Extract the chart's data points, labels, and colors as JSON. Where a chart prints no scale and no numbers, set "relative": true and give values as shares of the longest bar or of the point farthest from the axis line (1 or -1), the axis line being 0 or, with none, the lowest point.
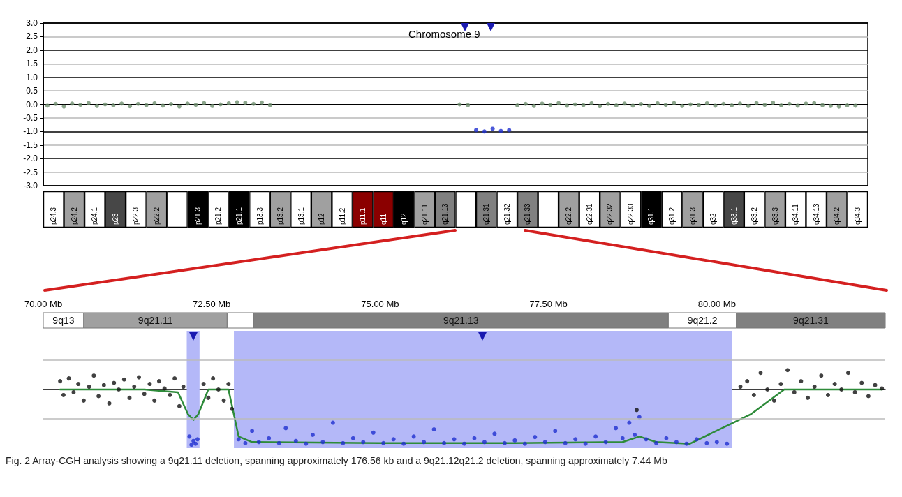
{
  "chart_data": [
    {
      "type": "scatter",
      "title": "Chromosome 9",
      "categories": [
        null,
        null,
        null,
        null,
        null,
        null,
        null,
        null,
        null,
        null,
        null,
        null,
        null,
        null,
        null,
        null,
        null,
        null,
        null,
        null,
        null,
        null,
        null,
        null,
        null,
        null,
        null,
        null,
        null,
        null,
        null,
        null,
        null,
        null,
        null,
        null,
        null,
        null,
        null,
        null,
        null,
        null,
        null,
        null,
        null,
        null,
        null,
        null,
        null,
        null,
        null,
        null,
        null,
        null,
        null,
        null,
        null,
        null,
        null,
        null,
        null,
        null,
        null,
        null,
        null,
        null,
        null,
        null,
        null,
        null,
        null,
        null,
        null,
        null,
        null,
        null,
        null,
        null,
        null,
        null,
        null,
        null,
        null,
        null,
        null,
        null,
        null,
        null,
        null,
        null,
        null,
        null,
        null,
        null,
        null,
        null,
        null,
        null,
        null,
        null
      ],
      "series": [
        {
          "color": "#6f8f6f",
          "values": [
            -0.05,
            0.02,
            -0.08,
            0.03,
            -0.02,
            0.05,
            -0.06,
            0,
            -0.04,
            0.03,
            -0.07,
            0.02,
            -0.03,
            0.04,
            -0.05,
            0.01,
            -0.08,
            0.03,
            -0.02,
            0.05,
            -0.06,
            0,
            0.04,
            0.08,
            0.06,
            0.02,
            0.07,
            -0.03,
            null,
            null,
            null,
            null,
            null,
            null,
            null,
            null,
            null,
            null,
            null,
            null,
            null,
            null,
            null,
            null,
            null,
            null,
            null,
            null,
            null,
            null,
            0,
            -0.03,
            null,
            null,
            null,
            null,
            null,
            -0.04,
            0.02,
            -0.06,
            0.03,
            -0.02,
            0.05,
            -0.05,
            0,
            -0.03,
            0.04,
            -0.07,
            0.02,
            -0.04,
            0.03,
            -0.05,
            0.01,
            -0.06,
            0.04,
            -0.02,
            0.05,
            -0.06,
            0,
            -0.03,
            0.04,
            -0.05,
            0.02,
            -0.04,
            0.03,
            -0.06,
            0.05,
            -0.02,
            0.06,
            -0.04,
            0.02,
            -0.05,
            0.03,
            0.05,
            -0.03,
            -0.06,
            -0.08,
            -0.04,
            -0.05,
            null
          ]
        },
        {
          "color": "#1f2fd0",
          "values": [
            null,
            null,
            null,
            null,
            null,
            null,
            null,
            null,
            null,
            null,
            null,
            null,
            null,
            null,
            null,
            null,
            null,
            null,
            null,
            null,
            null,
            null,
            null,
            null,
            null,
            null,
            null,
            null,
            null,
            null,
            null,
            null,
            null,
            null,
            null,
            null,
            null,
            null,
            null,
            null,
            null,
            null,
            null,
            null,
            null,
            null,
            null,
            null,
            null,
            null,
            null,
            null,
            -0.95,
            -1.0,
            -0.9,
            -0.98,
            -0.95,
            null,
            null,
            null,
            null,
            null,
            null,
            null,
            null,
            null,
            null,
            null,
            null,
            null,
            null,
            null,
            null,
            null,
            null,
            null,
            null,
            null,
            null,
            null,
            null,
            null,
            null,
            null,
            null,
            null,
            null,
            null,
            null,
            null,
            null,
            null,
            null,
            null,
            null,
            null,
            null,
            null,
            null,
            null
          ]
        }
      ],
      "ylim": [
        -3,
        3
      ],
      "yticks": [
        {
          "value": -3,
          "label": "-3.0"
        },
        {
          "value": -2.5,
          "label": "-2.5"
        },
        {
          "value": -2,
          "label": "-2.0"
        },
        {
          "value": -1.5,
          "label": "-1.5"
        },
        {
          "value": -1,
          "label": "-1.0"
        },
        {
          "value": -0.5,
          "label": "-0.5"
        },
        {
          "value": 0,
          "label": "0.0"
        },
        {
          "value": 0.5,
          "label": "0.5"
        },
        {
          "value": 1,
          "label": "1.0"
        },
        {
          "value": 1.5,
          "label": "1.5"
        },
        {
          "value": 2,
          "label": "2.0"
        },
        {
          "value": 2.5,
          "label": "2.5"
        },
        {
          "value": 3,
          "label": "3.0"
        }
      ],
      "grid": "y",
      "tick_labels": "y",
      "marker": "circle",
      "legend": false
    },
    {
      "type": "bar",
      "relative": true,
      "tick_labels": "x",
      "legend": false,
      "categories": [
        "p24.3",
        "p24.2",
        "p24.1",
        "p23",
        "p22.3",
        "p22.2",
        null,
        "p21.3",
        "p21.2",
        "p21.1",
        "p13.3",
        "p13.2",
        "p13.1",
        "p12",
        "p11.2",
        "p11.1",
        "q11",
        "q12",
        "q21.11",
        "q21.13",
        null,
        "q21.31",
        "q21.32",
        "q21.33",
        null,
        "q22.2",
        "q22.31",
        "q22.32",
        "q22.33",
        "q31.1",
        "q31.2",
        "q31.3",
        "q32",
        "q33.1",
        "q33.2",
        "q33.3",
        "q34.11",
        "q34.13",
        "q34.2",
        "q34.3"
      ],
      "values": [
        1,
        1,
        1,
        1,
        1,
        1,
        1,
        1,
        1,
        1,
        1,
        1,
        1,
        1,
        1,
        1,
        1,
        1,
        1,
        1,
        1,
        1,
        1,
        1,
        1,
        1,
        1,
        1,
        1,
        1,
        1,
        1,
        1,
        1,
        1,
        1,
        1,
        1,
        1,
        1
      ],
      "colors": [
        "#ffffff",
        "#a0a0a0",
        "#ffffff",
        "#474747",
        "#ffffff",
        "#a0a0a0",
        "#ffffff",
        "#000000",
        "#ffffff",
        "#000000",
        "#ffffff",
        "#a0a0a0",
        "#ffffff",
        "#a0a0a0",
        "#ffffff",
        "#8b0000",
        "#8b0000",
        "#000000",
        "#a0a0a0",
        "#808080",
        "#ffffff",
        "#808080",
        "#ffffff",
        "#808080",
        "#ffffff",
        "#a0a0a0",
        "#ffffff",
        "#a0a0a0",
        "#ffffff",
        "#000000",
        "#ffffff",
        "#a0a0a0",
        "#ffffff",
        "#474747",
        "#ffffff",
        "#a0a0a0",
        "#ffffff",
        "#ffffff",
        "#a0a0a0",
        "#ffffff"
      ]
    },
    {
      "type": "bar",
      "orientation": "horizontal",
      "categories": [
        null
      ],
      "tick_labels": "x",
      "legend": false,
      "xlim": [
        70,
        82.5
      ],
      "xticks": [
        {
          "value": 70,
          "label": "70.00 Mb"
        },
        {
          "value": 72.5,
          "label": "72.50 Mb"
        },
        {
          "value": 75,
          "label": "75.00 Mb"
        },
        {
          "value": 77.5,
          "label": "77.50 Mb"
        },
        {
          "value": 80,
          "label": "80.00 Mb"
        }
      ],
      "series": [
        {
          "name": "9q13",
          "color": "#ffffff",
          "base": [
            70
          ],
          "values": [
            0.6
          ]
        },
        {
          "name": "9q21.11",
          "color": "#a0a0a0",
          "base": [
            70.6
          ],
          "values": [
            2.13
          ]
        },
        {
          "color": "#ffffff",
          "base": [
            72.73
          ],
          "values": [
            0.39
          ]
        },
        {
          "name": "9q21.13",
          "color": "#808080",
          "base": [
            73.12
          ],
          "values": [
            6.16
          ]
        },
        {
          "name": "9q21.2",
          "color": "#ffffff",
          "base": [
            79.28
          ],
          "values": [
            1.01
          ]
        },
        {
          "name": "9q21.31",
          "color": "#808080",
          "base": [
            80.29
          ],
          "values": [
            2.21
          ]
        }
      ]
    },
    {
      "type": "scatter",
      "relative": true,
      "tick_labels": false,
      "legend": false,
      "marker": "circle",
      "xlim": [
        70,
        82.5
      ],
      "series": [
        {
          "color": "#111111",
          "x": [
            70.25,
            70.3,
            70.38,
            70.45,
            70.52,
            70.6,
            70.68,
            70.75,
            70.82,
            70.9,
            70.98,
            71.05,
            71.12,
            71.2,
            71.28,
            71.35,
            71.42,
            71.5,
            71.58,
            71.65,
            71.72,
            71.8,
            71.88,
            71.95,
            72.02,
            72.08,
            72.38,
            72.45,
            72.52,
            72.6,
            72.68,
            72.75,
            72.8,
            78.81,
            80.35,
            80.45,
            80.55,
            80.65,
            80.75,
            80.85,
            80.95,
            81.05,
            81.15,
            81.25,
            81.35,
            81.45,
            81.55,
            81.65,
            81.75,
            81.85,
            81.95,
            82.05,
            82.15,
            82.25,
            82.35,
            82.45
          ],
          "values": [
            0.15,
            -0.1,
            0.2,
            -0.05,
            0.1,
            -0.2,
            0.05,
            0.25,
            -0.12,
            0.08,
            -0.25,
            0.12,
            0,
            0.18,
            -0.15,
            0.05,
            0.22,
            -0.08,
            0.1,
            -0.2,
            0.15,
            0.02,
            -0.1,
            0.2,
            -0.3,
            0.05,
            0.1,
            -0.15,
            0.2,
            0,
            -0.2,
            0.1,
            -0.35,
            -0.37,
            0.05,
            0.15,
            -0.1,
            0.3,
            0,
            -0.2,
            0.1,
            0.35,
            -0.05,
            0.15,
            -0.15,
            0.05,
            0.25,
            -0.1,
            0.1,
            0,
            0.3,
            -0.05,
            0.12,
            -0.12,
            0.08,
            0.02
          ]
        },
        {
          "color": "#1f2fd0",
          "x": [
            72.17,
            72.2,
            72.23,
            72.26,
            72.29,
            72.9,
            73.0,
            73.1,
            73.2,
            73.35,
            73.5,
            73.6,
            73.75,
            73.9,
            74.0,
            74.15,
            74.3,
            74.45,
            74.6,
            74.75,
            74.9,
            75.05,
            75.2,
            75.35,
            75.5,
            75.65,
            75.8,
            75.95,
            76.1,
            76.25,
            76.4,
            76.55,
            76.7,
            76.85,
            77.0,
            77.15,
            77.3,
            77.45,
            77.6,
            77.75,
            77.9,
            78.05,
            78.2,
            78.35,
            78.5,
            78.6,
            78.7,
            78.78,
            78.85,
            78.95,
            79.1,
            79.25,
            79.4,
            79.55,
            79.7,
            79.85,
            80.0,
            80.15
          ],
          "values": [
            -0.85,
            -1.0,
            -0.93,
            -0.98,
            -0.9,
            -0.9,
            -0.97,
            -0.75,
            -0.95,
            -0.88,
            -0.97,
            -0.7,
            -0.93,
            -0.98,
            -0.82,
            -0.95,
            -0.6,
            -0.97,
            -0.88,
            -0.95,
            -0.78,
            -0.97,
            -0.9,
            -0.98,
            -0.85,
            -0.95,
            -0.72,
            -0.97,
            -0.9,
            -0.98,
            -0.88,
            -0.95,
            -0.8,
            -0.97,
            -0.92,
            -0.98,
            -0.86,
            -0.95,
            -0.75,
            -0.97,
            -0.9,
            -0.98,
            -0.85,
            -0.95,
            -0.7,
            -0.88,
            -0.6,
            -0.82,
            -0.5,
            -0.9,
            -0.97,
            -0.88,
            -0.95,
            -0.98,
            -0.9,
            -0.97,
            -0.95,
            -0.98
          ]
        },
        {
          "type": "line",
          "color": "#2e8b3a",
          "marker": "none",
          "x": [
            70.25,
            71.5,
            72.0,
            72.15,
            72.23,
            72.3,
            72.45,
            72.75,
            72.9,
            73.1,
            75.0,
            77.0,
            78.6,
            78.85,
            79.1,
            79.6,
            80.5,
            81.0,
            82.45
          ],
          "values": [
            0,
            0,
            -0.05,
            -0.45,
            -0.55,
            -0.45,
            0,
            0,
            -0.85,
            -0.95,
            -0.97,
            -0.97,
            -0.95,
            -0.85,
            -0.95,
            -0.98,
            -0.45,
            0,
            0
          ]
        }
      ],
      "bands": [
        {
          "axis": "x",
          "from": 72.13,
          "to": 72.32,
          "color": "#b4b8f8"
        },
        {
          "axis": "x",
          "from": 72.83,
          "to": 80.23,
          "color": "#b4b8f8"
        }
      ],
      "ref_lines": [
        {
          "axis": "y",
          "value": 0.53,
          "color": "#bbbbbb"
        },
        {
          "axis": "y",
          "value": -0.53,
          "color": "#bbbbbb"
        }
      ],
      "annotations": [
        "Fig. 2 Array-CGH analysis showing a 9q21.11 deletion, spanning approximately 176.56 kb and a 9q21.12q21.2 deletion, spanning approximately 7.44 Mb"
      ]
    }
  ]
}
